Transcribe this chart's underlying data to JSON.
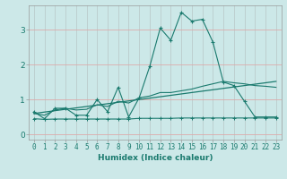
{
  "xlabel": "Humidex (Indice chaleur)",
  "bg_color": "#cce8e8",
  "line_color": "#1a7a6e",
  "grid_color_major": "#bbcccc",
  "grid_color_red": "#ddaaaa",
  "xlim": [
    -0.5,
    23.5
  ],
  "ylim": [
    -0.15,
    3.7
  ],
  "x_ticks": [
    0,
    1,
    2,
    3,
    4,
    5,
    6,
    7,
    8,
    9,
    10,
    11,
    12,
    13,
    14,
    15,
    16,
    17,
    18,
    19,
    20,
    21,
    22,
    23
  ],
  "y_ticks": [
    0,
    1,
    2,
    3
  ],
  "zigzag_x": [
    0,
    1,
    2,
    3,
    4,
    5,
    6,
    7,
    8,
    9,
    10,
    11,
    12,
    13,
    14,
    15,
    16,
    17,
    18,
    19,
    20,
    21,
    22,
    23
  ],
  "zigzag_y": [
    0.65,
    0.45,
    0.75,
    0.75,
    0.55,
    0.55,
    1.0,
    0.65,
    1.35,
    0.5,
    1.05,
    1.95,
    3.05,
    2.7,
    3.5,
    3.25,
    3.3,
    2.65,
    1.5,
    1.4,
    0.95,
    0.5,
    0.5,
    0.5
  ],
  "smooth_x": [
    0,
    1,
    2,
    3,
    4,
    5,
    6,
    7,
    8,
    9,
    10,
    11,
    12,
    13,
    14,
    15,
    16,
    17,
    18,
    19,
    20,
    21,
    22,
    23
  ],
  "smooth_y": [
    0.6,
    0.55,
    0.7,
    0.75,
    0.7,
    0.72,
    0.85,
    0.8,
    0.95,
    0.9,
    1.05,
    1.1,
    1.2,
    1.2,
    1.25,
    1.3,
    1.38,
    1.45,
    1.52,
    1.48,
    1.45,
    1.4,
    1.38,
    1.35
  ],
  "flat_x": [
    0,
    1,
    2,
    3,
    4,
    5,
    6,
    7,
    8,
    9,
    10,
    11,
    12,
    13,
    14,
    15,
    16,
    17,
    18,
    19,
    20,
    21,
    22,
    23
  ],
  "flat_y": [
    0.45,
    0.43,
    0.44,
    0.44,
    0.44,
    0.44,
    0.44,
    0.44,
    0.44,
    0.44,
    0.46,
    0.46,
    0.46,
    0.46,
    0.47,
    0.47,
    0.47,
    0.47,
    0.47,
    0.47,
    0.47,
    0.47,
    0.47,
    0.47
  ],
  "trend_x": [
    0,
    23
  ],
  "trend_y": [
    0.6,
    1.52
  ]
}
